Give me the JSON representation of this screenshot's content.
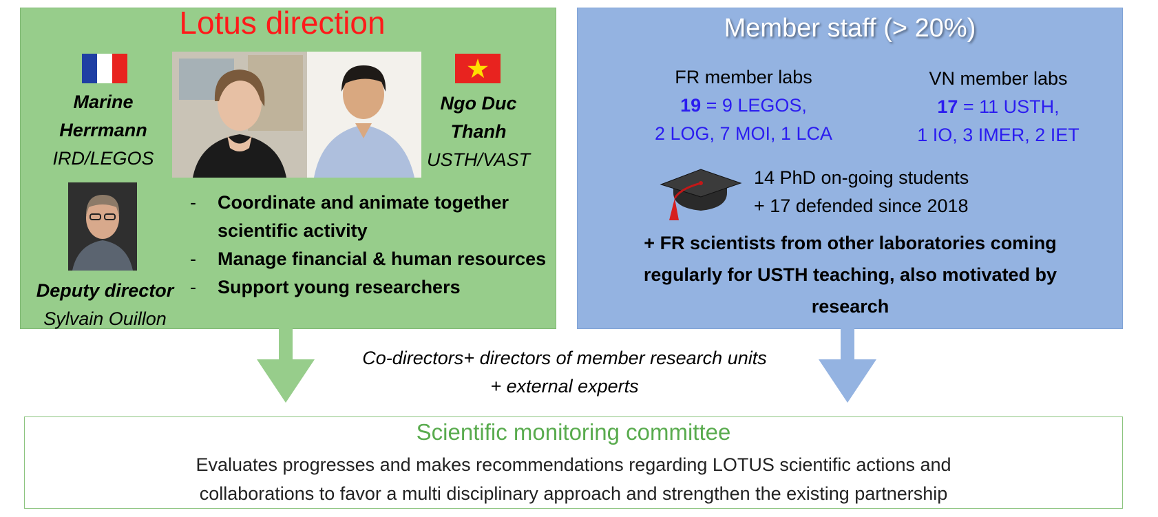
{
  "lotus": {
    "title": "Lotus direction",
    "colors": {
      "panel": "#97cd8b",
      "title": "#ff1a1a"
    },
    "persons": {
      "left": {
        "name_line1": "Marine",
        "name_line2": "Herrmann",
        "affiliation": "IRD/LEGOS",
        "flag": "france-flag"
      },
      "right": {
        "name_line1": "Ngo Duc",
        "name_line2": "Thanh",
        "affiliation": "USTH/VAST",
        "flag": "vietnam-flag"
      },
      "deputy": {
        "role": "Deputy director",
        "name": "Sylvain Ouillon"
      }
    },
    "bullets": [
      "Coordinate and animate together scientific activity",
      "Manage financial & human resources",
      "Support young researchers"
    ]
  },
  "member_staff": {
    "title": "Member staff (> 20%)",
    "colors": {
      "panel": "#94b3e1",
      "numbers": "#2b1cf0"
    },
    "fr": {
      "heading": "FR member labs",
      "count": "19",
      "line1_rest": " = 9 LEGOS,",
      "line2": "2 LOG, 7 MOI, 1 LCA"
    },
    "vn": {
      "heading": "VN member labs",
      "count": "17",
      "line1_rest": " = 11 USTH,",
      "line2": "1 IO, 3 IMER, 2 IET"
    },
    "phd": {
      "icon": "graduation-cap-icon",
      "line1": "14 PhD on-going students",
      "line2": "+ 17 defended since 2018"
    },
    "extra": "+ FR scientists from other laboratories coming regularly for USTH teaching, also motivated by research"
  },
  "middle": {
    "line1": "Co-directors+ directors of member research units",
    "line2": "+ external experts"
  },
  "committee": {
    "title": "Scientific monitoring committee",
    "line1": "Evaluates progresses and makes recommendations regarding LOTUS scientific actions and",
    "line2": "collaborations to favor a multi disciplinary approach and strengthen the existing partnership",
    "colors": {
      "border": "#8cc47f",
      "title": "#59ab4e"
    }
  }
}
